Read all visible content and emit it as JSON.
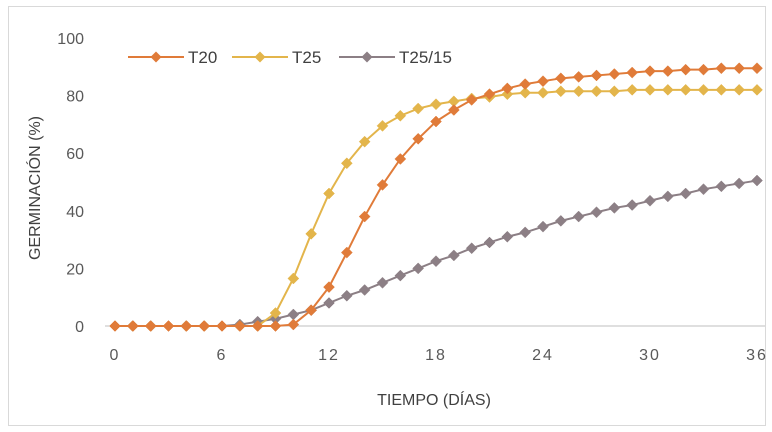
{
  "chart_data": {
    "type": "line",
    "title": "",
    "xlabel": "TIEMPO (DÍAS)",
    "ylabel": "GERMINACIÓN (%)",
    "xlim": [
      0,
      36
    ],
    "ylim": [
      0,
      100
    ],
    "xticks": [
      "0",
      "6",
      "12",
      "18",
      "24",
      "30",
      "36"
    ],
    "yticks": [
      "0",
      "20",
      "40",
      "60",
      "80",
      "100"
    ],
    "grid": false,
    "legend_position": "top-left",
    "x": [
      0,
      1,
      2,
      3,
      4,
      5,
      6,
      7,
      8,
      9,
      10,
      11,
      12,
      13,
      14,
      15,
      16,
      17,
      18,
      19,
      20,
      21,
      22,
      23,
      24,
      25,
      26,
      27,
      28,
      29,
      30,
      31,
      32,
      33,
      34,
      35,
      36
    ],
    "series": [
      {
        "name": "T20",
        "color": "#e07b39",
        "values": [
          0,
          0,
          0,
          0,
          0,
          0,
          0,
          0,
          0,
          0,
          0.5,
          5.5,
          13.5,
          25.5,
          38,
          49,
          58,
          65,
          71,
          75,
          78.5,
          80.5,
          82.5,
          84,
          85,
          86,
          86.5,
          87,
          87.5,
          88,
          88.5,
          88.5,
          89,
          89,
          89.5,
          89.5,
          89.5
        ]
      },
      {
        "name": "T25",
        "color": "#e3b54b",
        "values": [
          0,
          0,
          0,
          0,
          0,
          0,
          0,
          0,
          0,
          4.5,
          16.5,
          32,
          46,
          56.5,
          64,
          69.5,
          73,
          75.5,
          77,
          78,
          79,
          79.5,
          80.5,
          81,
          81,
          81.5,
          81.5,
          81.5,
          81.5,
          82,
          82,
          82,
          82,
          82,
          82,
          82,
          82
        ]
      },
      {
        "name": "T25/15",
        "color": "#8c7f85",
        "values": [
          0,
          0,
          0,
          0,
          0,
          0,
          0,
          0.5,
          1.5,
          2.5,
          4,
          5.5,
          8,
          10.5,
          12.5,
          15,
          17.5,
          20,
          22.5,
          24.5,
          27,
          29,
          31,
          32.5,
          34.5,
          36.5,
          38,
          39.5,
          41,
          42,
          43.5,
          45,
          46,
          47.5,
          48.5,
          49.5,
          50.5
        ]
      }
    ]
  }
}
